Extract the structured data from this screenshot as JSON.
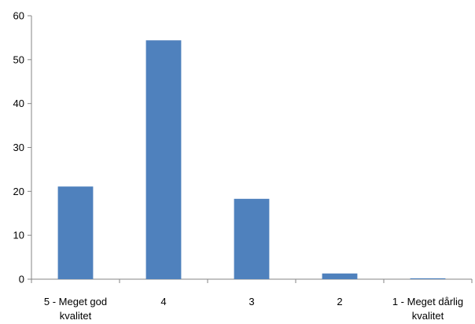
{
  "chart_data": {
    "type": "bar",
    "categories": [
      [
        "5 - Meget god",
        "kvalitet"
      ],
      [
        "4"
      ],
      [
        "3"
      ],
      [
        "2"
      ],
      [
        "1 - Meget dårlig",
        "kvalitet"
      ]
    ],
    "values": [
      21.1,
      54.4,
      18.3,
      1.3,
      0.2
    ],
    "title": "",
    "xlabel": "",
    "ylabel": "",
    "ylim": [
      0,
      60
    ],
    "yticks": [
      "0",
      "10",
      "20",
      "30",
      "40",
      "50",
      "60"
    ],
    "grid": false,
    "legend": "none",
    "bar_color": "#4F81BD",
    "axis_color": "#868686"
  }
}
